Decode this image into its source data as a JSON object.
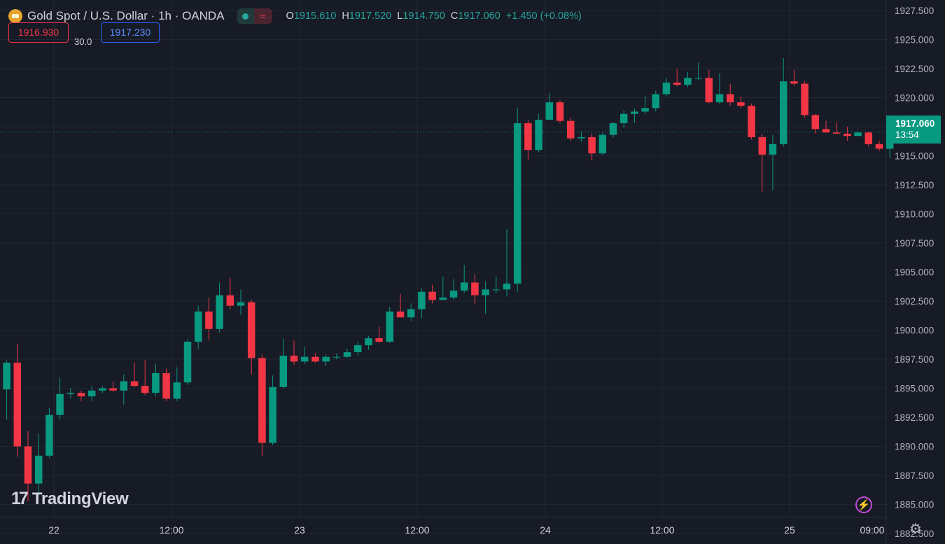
{
  "header": {
    "title": "Gold Spot / U.S. Dollar · 1h · OANDA",
    "status_icon": "live-dot-icon",
    "indicator_icon": "approx-wave-icon",
    "ohlc": [
      {
        "label": "O",
        "value": "1915.610"
      },
      {
        "label": "H",
        "value": "1917.520"
      },
      {
        "label": "L",
        "value": "1914.750"
      },
      {
        "label": "C",
        "value": "1917.060"
      }
    ],
    "change": "+1.450 (+0.08%)"
  },
  "quote": {
    "bid": "1916.930",
    "spread": "30.0",
    "ask": "1917.230"
  },
  "last_price": {
    "value": "1917.060",
    "countdown": "13:54"
  },
  "watermark": "TradingView",
  "colors": {
    "background": "#171b26",
    "up": "#089981",
    "down": "#f23645",
    "text": "#d1d4dc",
    "grid": "#232733"
  },
  "chart_data": {
    "type": "candlestick",
    "y_ticks": [
      "1927.500",
      "1925.000",
      "1922.500",
      "1920.000",
      "1917.500",
      "1915.000",
      "1912.500",
      "1910.000",
      "1907.500",
      "1905.000",
      "1902.500",
      "1900.000",
      "1897.500",
      "1895.000",
      "1892.500",
      "1890.000",
      "1887.500",
      "1885.000",
      "1882.500"
    ],
    "x_ticks": [
      "22",
      "12:00",
      "23",
      "12:00",
      "24",
      "12:00",
      "25",
      "09:00"
    ],
    "ylim": [
      1881.6,
      1928.4
    ],
    "last_price": 1917.06,
    "candles": [
      [
        1894.9,
        1897.4,
        1892.3,
        1897.2
      ],
      [
        1897.2,
        1898.8,
        1889.1,
        1890.0
      ],
      [
        1890.0,
        1891.3,
        1885.3,
        1886.8
      ],
      [
        1886.8,
        1891.1,
        1886.0,
        1889.2
      ],
      [
        1889.2,
        1893.3,
        1889.0,
        1892.7
      ],
      [
        1892.7,
        1895.9,
        1892.3,
        1894.5
      ],
      [
        1894.5,
        1895.0,
        1894.1,
        1894.6
      ],
      [
        1894.6,
        1894.8,
        1893.9,
        1894.3
      ],
      [
        1894.3,
        1895.2,
        1893.9,
        1894.8
      ],
      [
        1894.8,
        1895.2,
        1894.6,
        1895.0
      ],
      [
        1895.0,
        1895.6,
        1894.7,
        1894.8
      ],
      [
        1894.8,
        1896.2,
        1893.6,
        1895.6
      ],
      [
        1895.6,
        1897.2,
        1895.1,
        1895.2
      ],
      [
        1895.2,
        1897.4,
        1894.4,
        1894.6
      ],
      [
        1894.6,
        1897.1,
        1894.3,
        1896.3
      ],
      [
        1896.3,
        1896.7,
        1893.9,
        1894.1
      ],
      [
        1894.1,
        1896.8,
        1893.9,
        1895.5
      ],
      [
        1895.5,
        1899.2,
        1895.3,
        1899.0
      ],
      [
        1899.0,
        1902.1,
        1898.4,
        1901.6
      ],
      [
        1901.6,
        1902.8,
        1899.1,
        1900.1
      ],
      [
        1900.1,
        1904.1,
        1899.8,
        1903.0
      ],
      [
        1903.0,
        1904.5,
        1901.8,
        1902.1
      ],
      [
        1902.1,
        1903.5,
        1901.3,
        1902.4
      ],
      [
        1902.4,
        1902.6,
        1896.2,
        1897.6
      ],
      [
        1897.6,
        1897.9,
        1889.2,
        1890.3
      ],
      [
        1890.3,
        1896.1,
        1890.1,
        1895.1
      ],
      [
        1895.1,
        1899.3,
        1895.0,
        1897.8
      ],
      [
        1897.8,
        1899.1,
        1897.0,
        1897.3
      ],
      [
        1897.3,
        1898.6,
        1897.1,
        1897.7
      ],
      [
        1897.7,
        1898.0,
        1897.2,
        1897.3
      ],
      [
        1897.3,
        1897.9,
        1896.9,
        1897.7
      ],
      [
        1897.7,
        1898.0,
        1897.5,
        1897.7
      ],
      [
        1897.7,
        1898.4,
        1897.6,
        1898.1
      ],
      [
        1898.1,
        1899.0,
        1897.8,
        1898.7
      ],
      [
        1898.7,
        1899.5,
        1898.3,
        1899.3
      ],
      [
        1899.3,
        1900.3,
        1898.9,
        1899.0
      ],
      [
        1899.0,
        1902.0,
        1898.9,
        1901.6
      ],
      [
        1901.6,
        1903.1,
        1901.1,
        1901.1
      ],
      [
        1901.1,
        1902.3,
        1900.8,
        1901.8
      ],
      [
        1901.8,
        1903.6,
        1901.0,
        1903.3
      ],
      [
        1903.3,
        1903.9,
        1902.3,
        1902.6
      ],
      [
        1902.6,
        1904.6,
        1902.6,
        1902.8
      ],
      [
        1902.8,
        1904.4,
        1902.6,
        1903.4
      ],
      [
        1903.4,
        1905.6,
        1903.2,
        1904.1
      ],
      [
        1904.1,
        1904.8,
        1902.2,
        1903.0
      ],
      [
        1903.0,
        1904.2,
        1901.4,
        1903.5
      ],
      [
        1903.5,
        1904.6,
        1903.2,
        1903.5
      ],
      [
        1903.5,
        1908.7,
        1902.9,
        1904.0
      ],
      [
        1904.0,
        1919.1,
        1903.3,
        1917.8
      ],
      [
        1917.8,
        1918.1,
        1914.6,
        1915.5
      ],
      [
        1915.5,
        1918.6,
        1915.3,
        1918.1
      ],
      [
        1918.1,
        1920.4,
        1918.1,
        1919.6
      ],
      [
        1919.6,
        1919.8,
        1917.8,
        1918.0
      ],
      [
        1918.0,
        1918.3,
        1916.3,
        1916.5
      ],
      [
        1916.5,
        1917.1,
        1916.2,
        1916.6
      ],
      [
        1916.6,
        1916.9,
        1914.6,
        1915.2
      ],
      [
        1915.2,
        1917.0,
        1915.1,
        1916.8
      ],
      [
        1916.8,
        1917.9,
        1916.6,
        1917.8
      ],
      [
        1917.8,
        1918.9,
        1917.4,
        1918.6
      ],
      [
        1918.6,
        1919.1,
        1917.8,
        1918.8
      ],
      [
        1918.8,
        1920.2,
        1918.6,
        1919.1
      ],
      [
        1919.1,
        1920.6,
        1918.8,
        1920.3
      ],
      [
        1920.3,
        1921.7,
        1920.1,
        1921.3
      ],
      [
        1921.3,
        1922.5,
        1921.0,
        1921.1
      ],
      [
        1921.1,
        1922.2,
        1920.9,
        1921.7
      ],
      [
        1921.7,
        1923.0,
        1921.5,
        1921.7
      ],
      [
        1921.7,
        1922.4,
        1919.5,
        1919.6
      ],
      [
        1919.6,
        1922.1,
        1919.4,
        1920.3
      ],
      [
        1920.3,
        1921.2,
        1919.3,
        1919.6
      ],
      [
        1919.6,
        1920.1,
        1919.1,
        1919.3
      ],
      [
        1919.3,
        1919.5,
        1916.4,
        1916.6
      ],
      [
        1916.6,
        1916.9,
        1911.9,
        1915.1
      ],
      [
        1915.1,
        1916.8,
        1912.0,
        1916.0
      ],
      [
        1916.0,
        1923.4,
        1915.8,
        1921.4
      ],
      [
        1921.4,
        1922.4,
        1921.0,
        1921.2
      ],
      [
        1921.2,
        1921.4,
        1918.3,
        1918.5
      ],
      [
        1918.5,
        1918.6,
        1916.9,
        1917.3
      ],
      [
        1917.3,
        1918.0,
        1917.0,
        1917.0
      ],
      [
        1917.0,
        1917.9,
        1916.9,
        1916.9
      ],
      [
        1916.9,
        1917.5,
        1916.3,
        1916.7
      ],
      [
        1916.7,
        1917.1,
        1916.7,
        1917.0
      ],
      [
        1917.0,
        1917.1,
        1915.8,
        1916.0
      ],
      [
        1916.0,
        1916.3,
        1915.4,
        1915.6
      ],
      [
        1915.6,
        1917.5,
        1914.8,
        1917.1
      ]
    ]
  }
}
